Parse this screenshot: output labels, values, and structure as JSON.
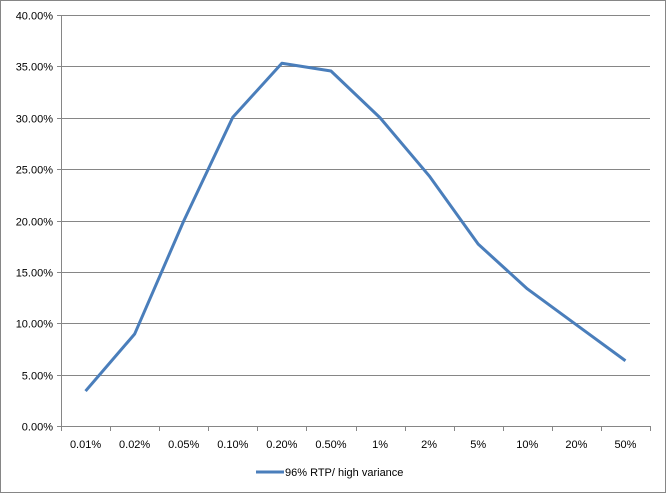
{
  "chart_data": {
    "type": "line",
    "categories": [
      "0.01%",
      "0.02%",
      "0.05%",
      "0.10%",
      "0.20%",
      "0.50%",
      "1%",
      "2%",
      "5%",
      "10%",
      "20%",
      "50%"
    ],
    "series": [
      {
        "name": "96% RTP/ high variance",
        "values": [
          3.4,
          8.95,
          19.95,
          30.05,
          35.3,
          34.55,
          30.0,
          24.35,
          17.7,
          13.35,
          9.85,
          6.35
        ]
      }
    ],
    "ylim": [
      0,
      40
    ],
    "yticks": [
      "0.00%",
      "5.00%",
      "10.00%",
      "15.00%",
      "20.00%",
      "25.00%",
      "30.00%",
      "35.00%",
      "40.00%"
    ],
    "grid": true,
    "legend": "bottom",
    "colors": {
      "series": "#4a7ebb",
      "grid": "#868686"
    }
  }
}
